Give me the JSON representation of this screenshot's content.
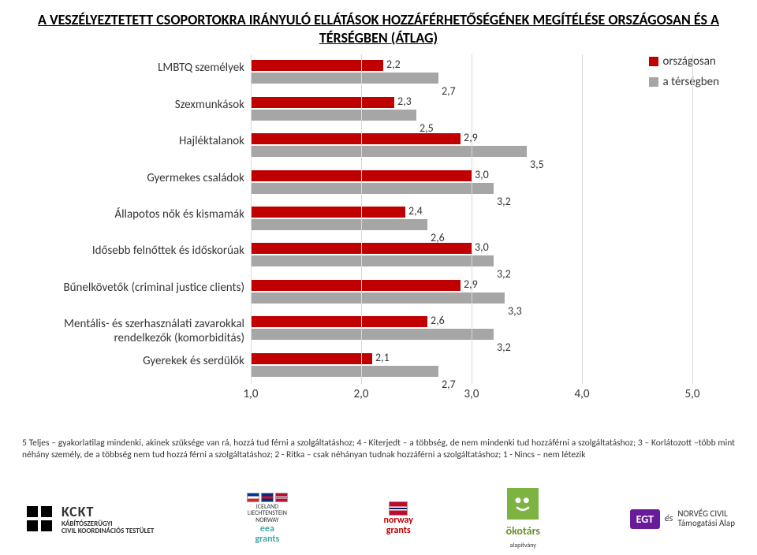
{
  "title": "A VESZÉLYEZTETETT CSOPORTOKRA IRÁNYULÓ ELLÁTÁSOK HOZZÁFÉRHETŐSÉGÉNEK MEGÍTÉLÉSE ORSZÁGOSAN ÉS A TÉRSÉGBEN (ÁTLAG)",
  "chart": {
    "type": "horizontal-grouped-bar",
    "xmin": 1.0,
    "xmax": 5.0,
    "xtick_step": 1.0,
    "xticks": [
      "1,0",
      "2,0",
      "3,0",
      "4,0",
      "5,0"
    ],
    "grid_color": "#d9d9d9",
    "background_color": "#ffffff",
    "label_fontsize": 15,
    "value_fontsize": 14,
    "series": [
      {
        "name": "országosan",
        "color": "#c00000"
      },
      {
        "name": "a térségben",
        "color": "#a6a6a6"
      }
    ],
    "categories": [
      {
        "label": "LMBTQ személyek",
        "values": [
          2.2,
          2.7
        ],
        "labels": [
          "2,2",
          "2,7"
        ]
      },
      {
        "label": "Szexmunkások",
        "values": [
          2.3,
          2.5
        ],
        "labels": [
          "2,3",
          "2,5"
        ]
      },
      {
        "label": "Hajléktalanok",
        "values": [
          2.9,
          3.5
        ],
        "labels": [
          "2,9",
          "3,5"
        ]
      },
      {
        "label": "Gyermekes családok",
        "values": [
          3.0,
          3.2
        ],
        "labels": [
          "3,0",
          "3,2"
        ]
      },
      {
        "label": "Állapotos nők és kismamák",
        "values": [
          2.4,
          2.6
        ],
        "labels": [
          "2,4",
          "2,6"
        ]
      },
      {
        "label": "Idősebb felnőttek és időskorúak",
        "values": [
          3.0,
          3.2
        ],
        "labels": [
          "3,0",
          "3,2"
        ]
      },
      {
        "label": "Bűnelkövetők (criminal justice clients)",
        "values": [
          2.9,
          3.3
        ],
        "labels": [
          "2,9",
          "3,3"
        ]
      },
      {
        "label": "Mentális- és szerhasználati zavarokkal rendelkezők (komorbiditás)",
        "values": [
          2.6,
          3.2
        ],
        "labels": [
          "2,6",
          "3,2"
        ]
      },
      {
        "label": "Gyerekek és serdülők",
        "values": [
          2.1,
          2.7
        ],
        "labels": [
          "2,1",
          "2,7"
        ]
      }
    ]
  },
  "footnote": "5 Teljes – gyakorlatilag mindenki, akinek szüksége van rá, hozzá tud férni a szolgáltatáshoz;  4 - Kiterjedt – a többség, de nem mindenki tud hozzáférni a szolgáltatáshoz;  3 – Korlátozott –több mint néhány személy, de a többség nem tud hozzá férni a szolgáltatáshoz;\n2 - Ritka – csak néhányan tudnak hozzáférni a szolgáltatáshoz;  1 - Nincs – nem létezik",
  "footer": {
    "kckt_name": "KCKT",
    "kckt_sub": "KÁBÍTÓSZERÜGYI\nCIVIL KOORDINÁCIÓS TESTÜLET",
    "eea1": "ICELAND\nLIECHTENSTEIN\nNORWAY",
    "eea2": "eea\ngrants",
    "norway": "norway\ngrants",
    "okotars": "ökotárs",
    "okotars_sub": "alapítvány",
    "egt": "EGT",
    "egt_sub": "és",
    "egt_right": "NORVÉG CIVIL\nTámogatási Alap"
  }
}
